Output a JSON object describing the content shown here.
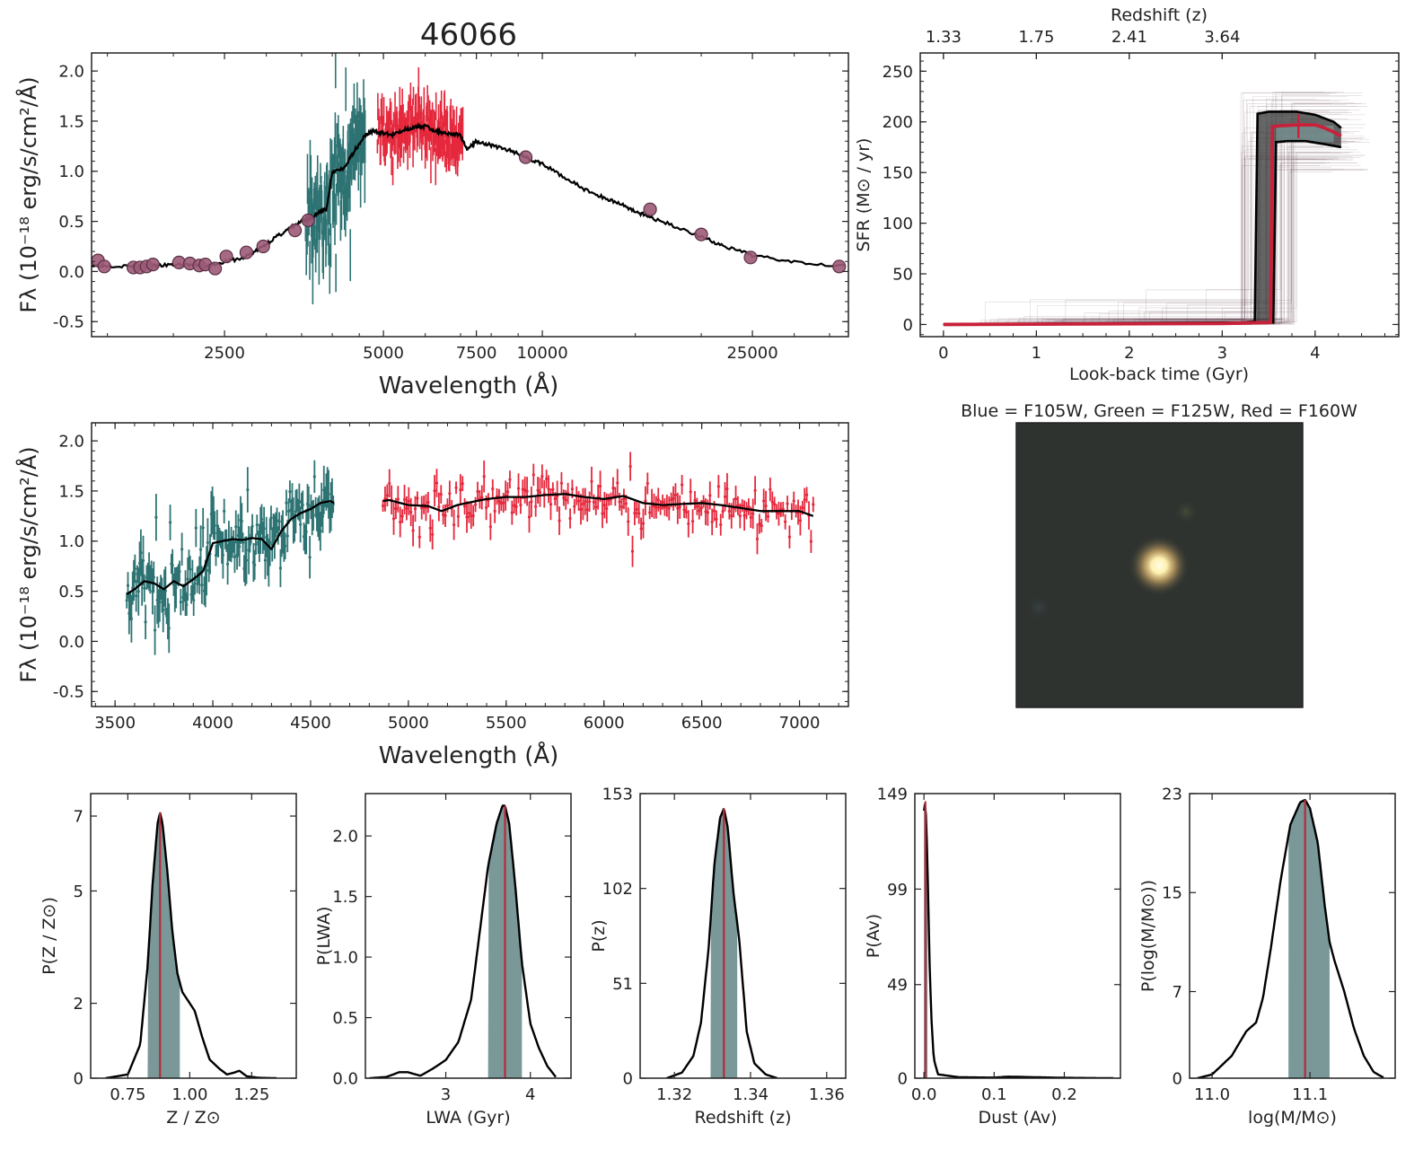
{
  "figure_title": "46066",
  "colors": {
    "spec_blue": "#2e7373",
    "spec_red": "#e5283c",
    "phot": "#9c5a78",
    "model": "#000000",
    "sfh_best": "#c8213a",
    "sfh_thin": "#5a3a4a",
    "pdf_fill": "#7a9898",
    "pdf_median": "#b52a3a"
  },
  "image_panel": {
    "title": "Blue = F105W, Green = F125W, Red = F160W"
  },
  "chart_data": [
    {
      "id": "sed",
      "type": "line",
      "title": "46066",
      "xlabel": "Wavelength (Å)",
      "ylabel": "Fλ (10⁻¹⁸ erg/s/cm²/Å)",
      "xscale": "log",
      "xlim": [
        1400,
        38000
      ],
      "ylim": [
        -0.65,
        2.18
      ],
      "xticks": [
        2500,
        5000,
        7500,
        10000,
        25000
      ],
      "yticks": [
        -0.5,
        0.0,
        0.5,
        1.0,
        1.5,
        2.0
      ],
      "photometry": {
        "x": [
          1440,
          1480,
          1680,
          1730,
          1780,
          1830,
          2050,
          2150,
          2240,
          2300,
          2400,
          2520,
          2750,
          2960,
          3400,
          3600,
          9300,
          16000,
          20000,
          24800,
          36500
        ],
        "y": [
          0.11,
          0.05,
          0.04,
          0.04,
          0.05,
          0.07,
          0.09,
          0.08,
          0.06,
          0.07,
          0.03,
          0.15,
          0.19,
          0.25,
          0.41,
          0.51,
          1.14,
          0.62,
          0.37,
          0.14,
          0.05
        ]
      },
      "model": {
        "x": [
          1400,
          1500,
          1700,
          1900,
          2100,
          2300,
          2500,
          2700,
          2900,
          3100,
          3300,
          3500,
          3600,
          3700,
          3800,
          3900,
          4000,
          4200,
          4400,
          4600,
          4700,
          4800,
          5000,
          5200,
          5500,
          5800,
          6000,
          6300,
          6600,
          7000,
          7200,
          7500,
          8000,
          8500,
          9000,
          9500,
          10000,
          11000,
          12000,
          13000,
          14000,
          15000,
          16000,
          18000,
          20000,
          22000,
          25000,
          30000,
          38000
        ],
        "y": [
          0.06,
          0.06,
          0.05,
          0.06,
          0.07,
          0.05,
          0.1,
          0.13,
          0.22,
          0.33,
          0.42,
          0.5,
          0.52,
          0.55,
          0.6,
          0.62,
          1.0,
          1.02,
          1.2,
          1.35,
          1.38,
          1.4,
          1.38,
          1.36,
          1.42,
          1.44,
          1.45,
          1.4,
          1.38,
          1.36,
          1.22,
          1.3,
          1.26,
          1.22,
          1.18,
          1.12,
          1.07,
          0.94,
          0.82,
          0.74,
          0.68,
          0.6,
          0.54,
          0.44,
          0.35,
          0.25,
          0.16,
          0.1,
          0.05
        ]
      }
    },
    {
      "id": "sfh",
      "type": "line",
      "xlabel": "Look-back time (Gyr)",
      "ylabel": "SFR (M⊙ / yr)",
      "top_xlabel": "Redshift (z)",
      "top_ticks": [
        "1.33",
        "1.75",
        "2.41",
        "3.64"
      ],
      "top_tick_positions_gyr": [
        0.0,
        1.0,
        2.0,
        3.0
      ],
      "xlim": [
        -0.25,
        4.9
      ],
      "ylim": [
        -12,
        268
      ],
      "xticks": [
        0,
        1,
        2,
        3,
        4
      ],
      "yticks": [
        0,
        50,
        100,
        150,
        200,
        250
      ],
      "best": {
        "x": [
          0.0,
          3.0,
          3.52,
          3.54,
          3.6,
          3.8,
          4.0,
          4.1,
          4.2,
          4.28
        ],
        "y": [
          0,
          1,
          2,
          195,
          196,
          197,
          197,
          194,
          190,
          186
        ]
      },
      "upper": {
        "x": [
          0.0,
          3.2,
          3.35,
          3.38,
          3.5,
          3.8,
          4.0,
          4.2,
          4.28
        ],
        "y": [
          0,
          2,
          3,
          208,
          210,
          210,
          207,
          200,
          194
        ]
      },
      "lower": {
        "x": [
          0.0,
          3.3,
          3.55,
          3.58,
          3.7,
          3.9,
          4.1,
          4.28
        ],
        "y": [
          0,
          1,
          2,
          180,
          181,
          181,
          178,
          175
        ]
      }
    },
    {
      "id": "spec_zoom",
      "type": "line",
      "xlabel": "Wavelength (Å)",
      "ylabel": "Fλ (10⁻¹⁸ erg/s/cm²/Å)",
      "xlim": [
        3380,
        7250
      ],
      "ylim": [
        -0.65,
        2.18
      ],
      "xticks": [
        3500,
        4000,
        4500,
        5000,
        5500,
        6000,
        6500,
        7000
      ],
      "yticks": [
        -0.5,
        0.0,
        0.5,
        1.0,
        1.5,
        2.0
      ],
      "blue_spectrum_range": [
        3560,
        4620
      ],
      "red_spectrum_range": [
        4870,
        7070
      ],
      "model": {
        "x": [
          3560,
          3600,
          3650,
          3700,
          3750,
          3800,
          3850,
          3900,
          3950,
          4000,
          4050,
          4100,
          4150,
          4200,
          4250,
          4300,
          4350,
          4400,
          4450,
          4500,
          4550,
          4600,
          4620,
          4870,
          4900,
          5000,
          5100,
          5170,
          5250,
          5300,
          5400,
          5500,
          5600,
          5700,
          5800,
          5900,
          6000,
          6100,
          6200,
          6300,
          6400,
          6500,
          6600,
          6700,
          6800,
          6900,
          7000,
          7070
        ],
        "y": [
          0.47,
          0.52,
          0.6,
          0.58,
          0.52,
          0.6,
          0.55,
          0.62,
          0.7,
          0.98,
          1.0,
          1.02,
          1.01,
          1.03,
          1.02,
          0.92,
          1.1,
          1.22,
          1.28,
          1.32,
          1.38,
          1.4,
          1.38,
          1.4,
          1.41,
          1.36,
          1.35,
          1.3,
          1.36,
          1.38,
          1.42,
          1.44,
          1.44,
          1.46,
          1.47,
          1.44,
          1.42,
          1.45,
          1.38,
          1.36,
          1.37,
          1.38,
          1.36,
          1.33,
          1.3,
          1.3,
          1.3,
          1.25
        ]
      }
    },
    {
      "id": "pdf_metal",
      "type": "area",
      "xlabel": "Z / Z⊙",
      "ylabel": "P(Z / Z⊙)",
      "xlim": [
        0.6,
        1.43
      ],
      "ylim": [
        0,
        7.6
      ],
      "xticks": [
        0.75,
        1.0,
        1.25
      ],
      "xticklabels": [
        "0.75",
        "1.00",
        "1.25"
      ],
      "yticks": [
        0,
        2,
        5,
        7
      ],
      "yticklabels": [
        "0",
        "2",
        "5",
        "7"
      ],
      "median": 0.88,
      "range": [
        0.83,
        0.96
      ],
      "x": [
        0.66,
        0.75,
        0.8,
        0.83,
        0.85,
        0.87,
        0.88,
        0.89,
        0.91,
        0.93,
        0.95,
        0.97,
        0.99,
        1.02,
        1.05,
        1.08,
        1.12,
        1.15,
        1.18,
        1.2,
        1.23,
        1.28,
        1.35
      ],
      "y": [
        0,
        0.1,
        0.9,
        3.0,
        5.2,
        6.8,
        7.1,
        6.8,
        5.5,
        3.9,
        2.8,
        2.3,
        2.1,
        1.8,
        1.1,
        0.5,
        0.25,
        0.1,
        0.15,
        0.2,
        0.05,
        0.01,
        0
      ]
    },
    {
      "id": "pdf_lwa",
      "type": "area",
      "xlabel": "LWA (Gyr)",
      "ylabel": "P(LWA)",
      "xlim": [
        2.05,
        4.48
      ],
      "ylim": [
        0,
        2.35
      ],
      "xticks": [
        3,
        4
      ],
      "xticklabels": [
        "3",
        "4"
      ],
      "yticks": [
        0,
        0.5,
        1.0,
        1.5,
        2.0
      ],
      "yticklabels": [
        "0.0",
        "0.5",
        "1.0",
        "1.5",
        "2.0"
      ],
      "median": 3.7,
      "range": [
        3.5,
        3.9
      ],
      "x": [
        2.1,
        2.3,
        2.45,
        2.55,
        2.7,
        2.85,
        3.0,
        3.15,
        3.3,
        3.4,
        3.5,
        3.6,
        3.67,
        3.7,
        3.75,
        3.82,
        3.9,
        4.0,
        4.1,
        4.2,
        4.3
      ],
      "y": [
        0,
        0.01,
        0.05,
        0.05,
        0.02,
        0.08,
        0.15,
        0.3,
        0.65,
        1.2,
        1.75,
        2.1,
        2.25,
        2.25,
        2.1,
        1.6,
        0.95,
        0.45,
        0.25,
        0.1,
        0.01
      ]
    },
    {
      "id": "pdf_z",
      "type": "area",
      "xlabel": "Redshift (z)",
      "ylabel": "P(z)",
      "xlim": [
        1.311,
        1.365
      ],
      "ylim": [
        0,
        153
      ],
      "xticks": [
        1.32,
        1.34,
        1.36
      ],
      "xticklabels": [
        "1.32",
        "1.34",
        "1.36"
      ],
      "yticks": [
        0,
        51,
        102,
        153
      ],
      "yticklabels": [
        "0",
        "51",
        "102",
        "153"
      ],
      "median": 1.333,
      "range": [
        1.3295,
        1.3365
      ],
      "x": [
        1.318,
        1.322,
        1.325,
        1.327,
        1.329,
        1.3305,
        1.332,
        1.333,
        1.334,
        1.3355,
        1.337,
        1.338,
        1.339,
        1.341,
        1.344,
        1.347
      ],
      "y": [
        0,
        3,
        12,
        30,
        70,
        115,
        140,
        145,
        135,
        100,
        75,
        50,
        25,
        8,
        2,
        0
      ]
    },
    {
      "id": "pdf_av",
      "type": "area",
      "xlabel": "Dust (Av)",
      "ylabel": "P(Av)",
      "xlim": [
        -0.013,
        0.28
      ],
      "ylim": [
        0,
        149
      ],
      "xticks": [
        0.0,
        0.1,
        0.2
      ],
      "xticklabels": [
        "0.0",
        "0.1",
        "0.2"
      ],
      "yticks": [
        0,
        49,
        99,
        149
      ],
      "yticklabels": [
        "0",
        "49",
        "99",
        "149"
      ],
      "median": 0.002,
      "range": [
        0.0,
        0.005
      ],
      "x": [
        0.0,
        0.002,
        0.004,
        0.006,
        0.008,
        0.011,
        0.014,
        0.02,
        0.05,
        0.1,
        0.12,
        0.2,
        0.27
      ],
      "y": [
        140,
        145,
        125,
        95,
        60,
        28,
        10,
        2,
        0.5,
        0.3,
        0.8,
        0.2,
        0
      ]
    },
    {
      "id": "pdf_mass",
      "type": "area",
      "xlabel": "log(M/M⊙)",
      "ylabel": "P(log(M/M⊙))",
      "xlim": [
        10.977,
        11.187
      ],
      "ylim": [
        0,
        23
      ],
      "xticks": [
        11.0,
        11.1
      ],
      "xticklabels": [
        "11.0",
        "11.1"
      ],
      "yticks": [
        0,
        7,
        15,
        23
      ],
      "yticklabels": [
        "0",
        "7",
        "15",
        "23"
      ],
      "median": 11.095,
      "range": [
        11.078,
        11.12
      ],
      "x": [
        10.985,
        11.0,
        11.02,
        11.035,
        11.045,
        11.052,
        11.06,
        11.07,
        11.08,
        11.09,
        11.095,
        11.1,
        11.108,
        11.115,
        11.12,
        11.125,
        11.135,
        11.145,
        11.155,
        11.165,
        11.175
      ],
      "y": [
        0,
        0.3,
        1.8,
        3.8,
        4.5,
        6.5,
        10.5,
        16,
        20.5,
        22.3,
        22.5,
        21.8,
        19,
        14,
        11,
        9.5,
        7,
        4,
        1.8,
        0.5,
        0.05
      ]
    }
  ]
}
